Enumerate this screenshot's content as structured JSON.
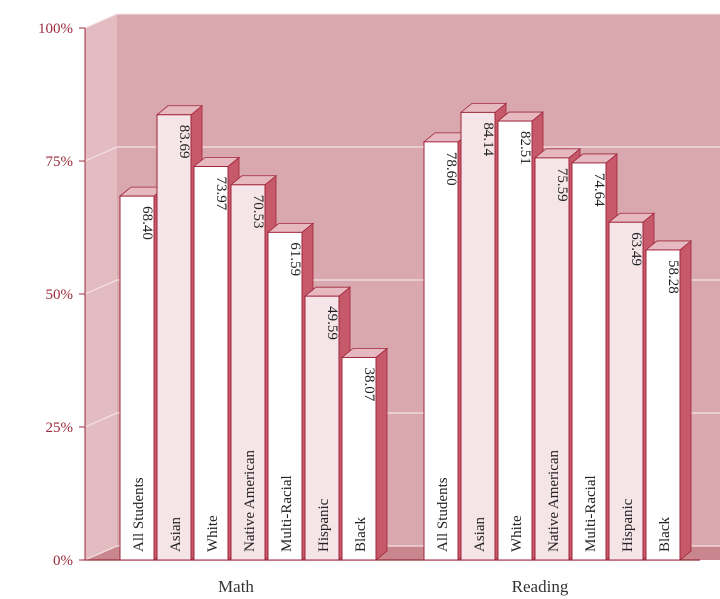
{
  "chart_data": {
    "type": "bar",
    "title": "",
    "xlabel": "",
    "ylabel": "",
    "ylim": [
      0,
      100
    ],
    "y_ticks": [
      "0%",
      "25%",
      "50%",
      "75%",
      "100%"
    ],
    "y_tick_values": [
      0,
      25,
      50,
      75,
      100
    ],
    "grid": true,
    "three_d": true,
    "value_labels_inside_bars": true,
    "category_labels_inside_bars": true,
    "groups": [
      {
        "name": "Math",
        "bars": [
          {
            "label": "All Students",
            "value": 68.4,
            "text": "68.40"
          },
          {
            "label": "Asian",
            "value": 83.69,
            "text": "83.69"
          },
          {
            "label": "White",
            "value": 73.97,
            "text": "73.97"
          },
          {
            "label": "Native American",
            "value": 70.53,
            "text": "70.53"
          },
          {
            "label": "Multi-Racial",
            "value": 61.59,
            "text": "61.59"
          },
          {
            "label": "Hispanic",
            "value": 49.59,
            "text": "49.59"
          },
          {
            "label": "Black",
            "value": 38.07,
            "text": "38.07"
          }
        ]
      },
      {
        "name": "Reading",
        "bars": [
          {
            "label": "All Students",
            "value": 78.6,
            "text": "78.60"
          },
          {
            "label": "Asian",
            "value": 84.14,
            "text": "84.14"
          },
          {
            "label": "White",
            "value": 82.51,
            "text": "82.51"
          },
          {
            "label": "Native American",
            "value": 75.59,
            "text": "75.59"
          },
          {
            "label": "Multi-Racial",
            "value": 74.64,
            "text": "74.64"
          },
          {
            "label": "Hispanic",
            "value": 63.49,
            "text": "63.49"
          },
          {
            "label": "Black",
            "value": 58.28,
            "text": "58.28"
          }
        ]
      }
    ],
    "colors": {
      "back_wall": "#d9a7ae",
      "side_wall": "#e3bcc2",
      "floor": "#c9868f",
      "grid": "#f5e3e6",
      "axis_text": "#9b2a3a",
      "bar_face_light": "#ffffff",
      "bar_face_alt": "#f6e5e8",
      "bar_top": "#e6b9c0",
      "bar_side": "#c65a6a",
      "bar_edge": "#a0243a",
      "bar_text": "#222222"
    }
  }
}
